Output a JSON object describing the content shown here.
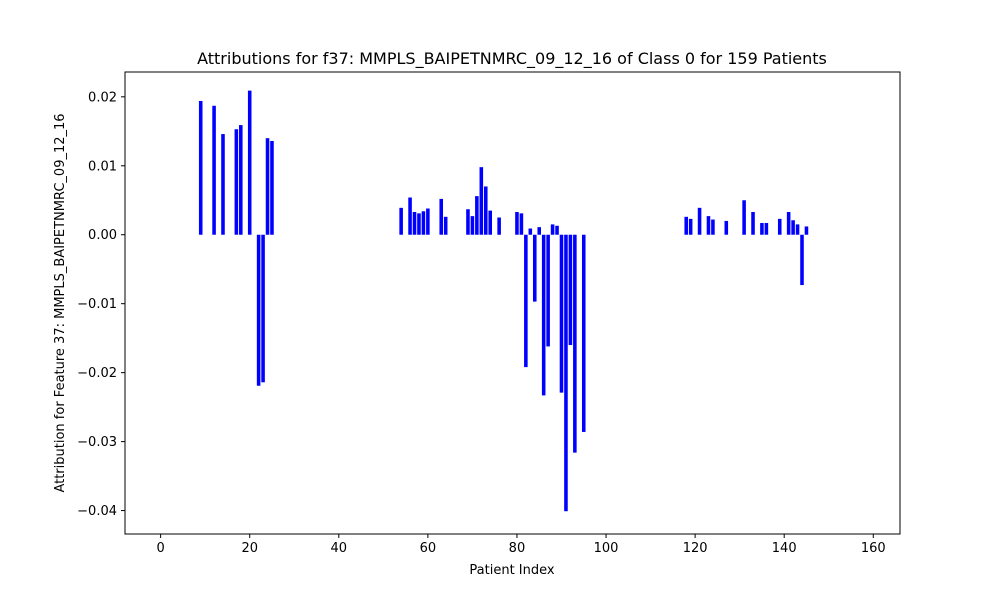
{
  "chart_data": {
    "type": "bar",
    "title": "Attributions for f37: MMPLS_BAIPETNMRC_09_12_16 of Class 0 for 159 Patients",
    "xlabel": "Patient Index",
    "ylabel": "Attribution for Feature 37: MMPLS_BAIPETNMRC_09_12_16",
    "xlim": [
      -8,
      166
    ],
    "ylim": [
      -0.0434,
      0.0236
    ],
    "xticks": [
      0,
      20,
      40,
      60,
      80,
      100,
      120,
      140,
      160
    ],
    "xtick_labels": [
      "0",
      "20",
      "40",
      "60",
      "80",
      "100",
      "120",
      "140",
      "160"
    ],
    "yticks": [
      -0.04,
      -0.03,
      -0.02,
      -0.01,
      0.0,
      0.01,
      0.02
    ],
    "ytick_labels": [
      "−0.04",
      "−0.03",
      "−0.02",
      "−0.01",
      "0.00",
      "0.01",
      "0.02"
    ],
    "bar_color": "#0000ff",
    "grid": false,
    "legend": "none",
    "x": [
      9,
      12,
      14,
      17,
      18,
      20,
      22,
      23,
      24,
      25,
      54,
      56,
      57,
      58,
      59,
      60,
      63,
      64,
      69,
      70,
      71,
      72,
      73,
      74,
      76,
      80,
      81,
      82,
      83,
      84,
      85,
      86,
      87,
      88,
      89,
      90,
      91,
      92,
      93,
      95,
      118,
      119,
      121,
      123,
      124,
      127,
      131,
      133,
      135,
      136,
      139,
      141,
      142,
      143,
      144,
      145
    ],
    "values": [
      0.0194,
      0.0187,
      0.0146,
      0.0153,
      0.0159,
      0.0209,
      -0.0219,
      -0.0214,
      0.014,
      0.0136,
      0.0039,
      0.0054,
      0.0033,
      0.0031,
      0.0034,
      0.0038,
      0.0052,
      0.0026,
      0.0037,
      0.0027,
      0.0056,
      0.0098,
      0.007,
      0.0035,
      0.0025,
      0.0033,
      0.0031,
      -0.0192,
      0.0009,
      -0.0097,
      0.0011,
      -0.0233,
      -0.0162,
      0.0015,
      0.0013,
      -0.0229,
      -0.0401,
      -0.016,
      -0.0316,
      -0.0286,
      0.0026,
      0.0023,
      0.0039,
      0.0027,
      0.0022,
      0.002,
      0.005,
      0.0033,
      0.0017,
      0.0017,
      0.0023,
      0.0033,
      0.0021,
      0.0015,
      -0.0073,
      0.0012
    ]
  }
}
